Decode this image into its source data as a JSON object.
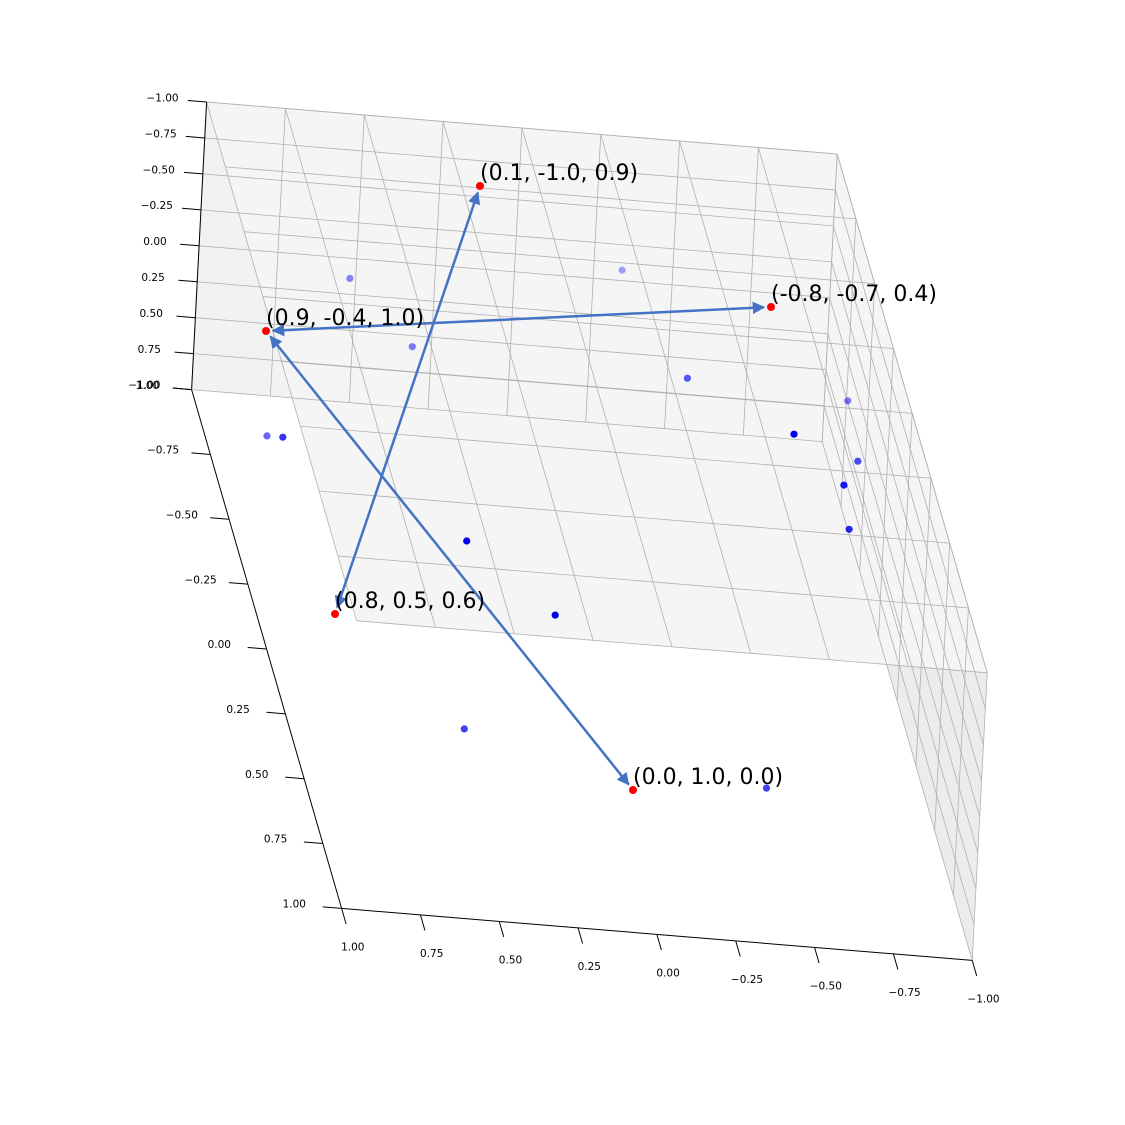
{
  "chart_data": {
    "type": "scatter3d",
    "title": "",
    "xlabel": "",
    "ylabel": "",
    "zlabel": "",
    "xlim": [
      -1.0,
      1.0
    ],
    "ylim": [
      -1.0,
      1.0
    ],
    "zlim": [
      -1.0,
      1.0
    ],
    "x_ticks": [
      "1.00",
      "0.75",
      "0.50",
      "0.25",
      "0.00",
      "−0.25",
      "−0.50",
      "−0.75",
      "−1.00"
    ],
    "y_ticks": [
      "−1.00",
      "−0.75",
      "−0.50",
      "−0.25",
      "0.00",
      "0.25",
      "0.50",
      "0.75",
      "1.00"
    ],
    "z_ticks": [
      "1.00",
      "0.75",
      "0.50",
      "0.25",
      "0.00",
      "−0.25",
      "−0.50",
      "−0.75",
      "−1.00"
    ],
    "grid": true,
    "colors": {
      "labeled_point": "#ff0000",
      "scatter_point": "#0000ee",
      "arrow": "#4472c4",
      "pane": "#f2f2f2",
      "grid": "#b0b0b0"
    },
    "labeled_points": [
      {
        "label": "(0.1, -1.0, 0.9)"
      },
      {
        "label": "(-0.8, -0.7, 0.4)"
      },
      {
        "label": "(0.9, -0.4, 1.0)"
      },
      {
        "label": "(0.8, 0.5, 0.6)"
      },
      {
        "label": "(0.0, 1.0, 0.0)"
      }
    ],
    "arrows": [
      {
        "from": 2,
        "to": 1
      },
      {
        "from": 0,
        "to": 3
      },
      {
        "from": 2,
        "to": 4
      }
    ],
    "scatter_points": [
      {
        "x": -0.55,
        "y": -0.95,
        "z": 0.55,
        "alpha": 0.65
      },
      {
        "x": -0.95,
        "y": -0.55,
        "z": 0.5,
        "alpha": 0.9
      },
      {
        "x": 0.45,
        "y": -0.5,
        "z": -0.3,
        "alpha": 0.5
      },
      {
        "x": -0.2,
        "y": -0.5,
        "z": -0.95,
        "alpha": 0.35
      },
      {
        "x": 0.7,
        "y": -0.35,
        "z": -1.0,
        "alpha": 0.45
      },
      {
        "x": -0.85,
        "y": -0.2,
        "z": -0.7,
        "alpha": 0.5
      },
      {
        "x": -0.7,
        "y": -0.25,
        "z": -0.35,
        "alpha": 1.0
      },
      {
        "x": -0.85,
        "y": -0.05,
        "z": -0.55,
        "alpha": 0.7
      },
      {
        "x": -0.75,
        "y": 0.25,
        "z": -0.6,
        "alpha": 0.85
      },
      {
        "x": 0.95,
        "y": -0.3,
        "z": 0.05,
        "alpha": 0.6
      },
      {
        "x": 0.9,
        "y": -0.3,
        "z": 0.05,
        "alpha": 0.8
      },
      {
        "x": 0.4,
        "y": 0.05,
        "z": 0.05,
        "alpha": 1.0
      },
      {
        "x": 0.15,
        "y": 0.2,
        "z": 0.25,
        "alpha": 1.0
      },
      {
        "x": 0.6,
        "y": 0.85,
        "z": -0.05,
        "alpha": 0.75
      },
      {
        "x": -0.35,
        "y": 0.9,
        "z": 0.1,
        "alpha": 0.75
      }
    ]
  }
}
